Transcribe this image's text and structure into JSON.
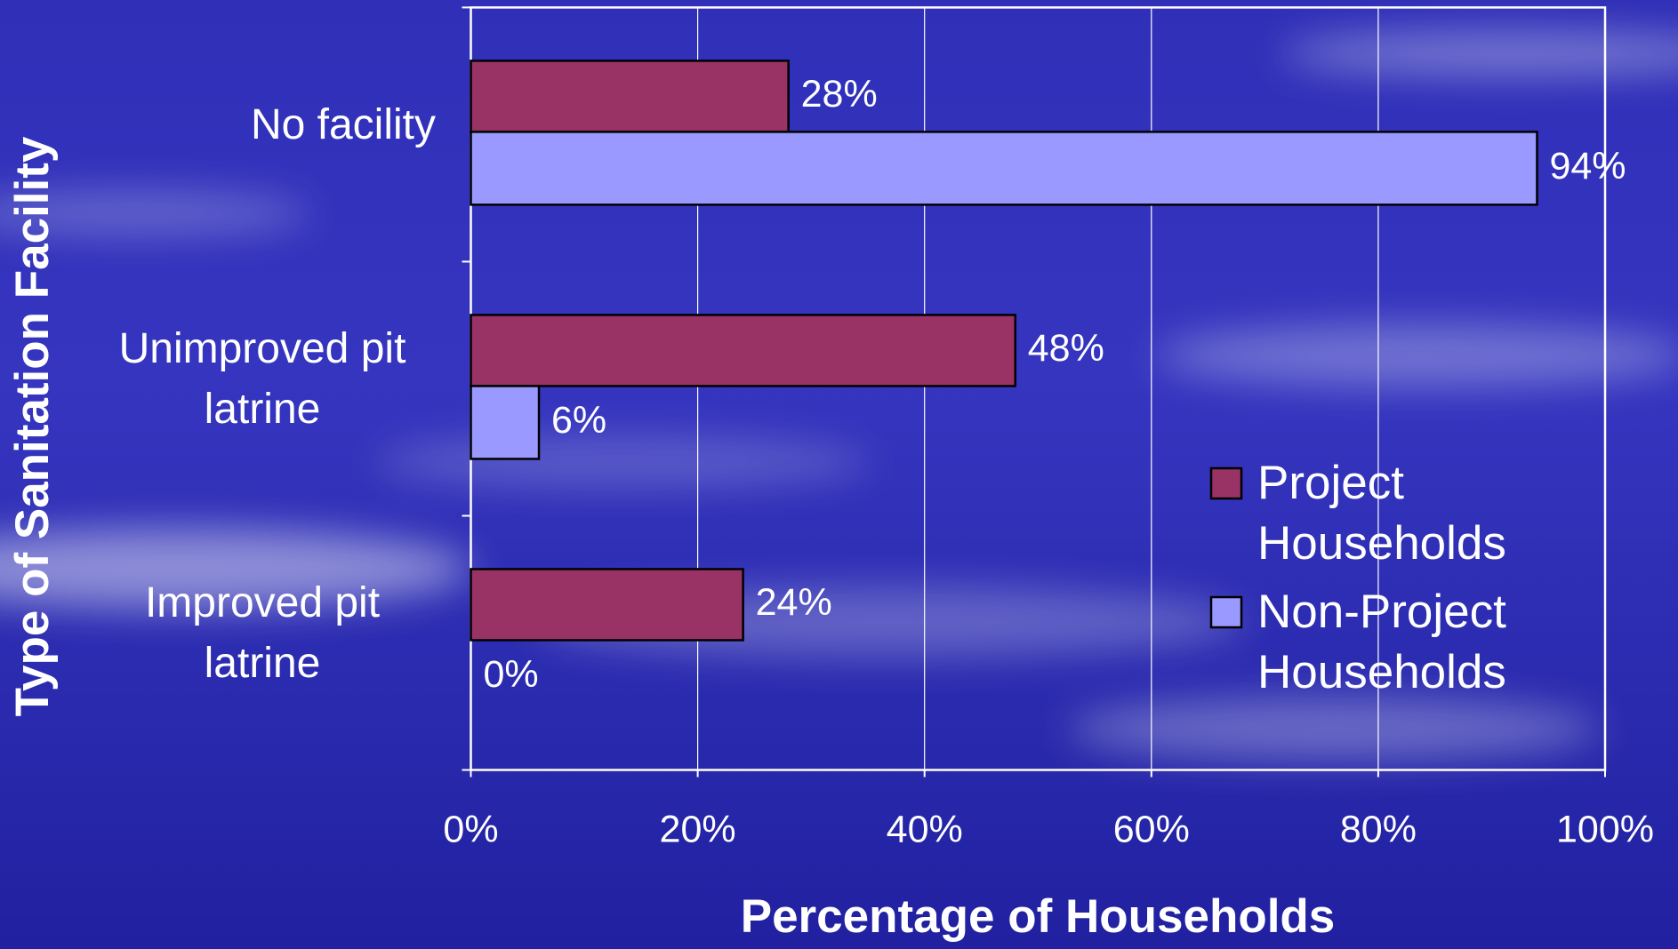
{
  "chart_data": {
    "type": "bar",
    "orientation": "horizontal",
    "x_label": "Percentage of Households",
    "y_label": "Type of Sanitation Facility",
    "categories": [
      "No facility",
      "Unimproved pit latrine",
      "Improved pit latrine"
    ],
    "series": [
      {
        "name": "Project Households",
        "color": "#993366",
        "values": [
          28,
          48,
          24
        ],
        "value_labels": [
          "28%",
          "48%",
          "24%"
        ]
      },
      {
        "name": "Non-Project Households",
        "color": "#9999ff",
        "values": [
          94,
          6,
          0
        ],
        "value_labels": [
          "94%",
          "6%",
          "0%"
        ]
      }
    ],
    "xlim": [
      0,
      100
    ],
    "xticks": [
      {
        "value": 0,
        "label": "0%"
      },
      {
        "value": 20,
        "label": "20%"
      },
      {
        "value": 40,
        "label": "40%"
      },
      {
        "value": 60,
        "label": "60%"
      },
      {
        "value": 80,
        "label": "80%"
      },
      {
        "value": 100,
        "label": "100%"
      }
    ],
    "grid": true,
    "legend": "right"
  }
}
